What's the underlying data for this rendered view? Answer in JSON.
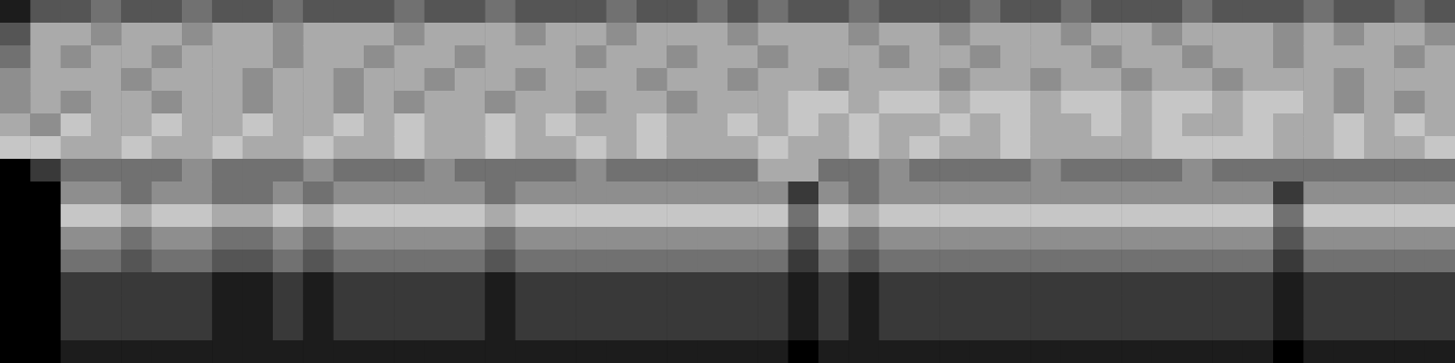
{
  "chart_data": {
    "type": "heatmap",
    "tick_labels": false,
    "zlim": [
      0,
      9
    ],
    "cells": [
      [
        1,
        3,
        3,
        4,
        3,
        3,
        4,
        3,
        3,
        4,
        3,
        3,
        3,
        4,
        3,
        3,
        4,
        3,
        3,
        3,
        4,
        3,
        3,
        4,
        3,
        4,
        3,
        3,
        4,
        3,
        3,
        3,
        4,
        3,
        3,
        4,
        3,
        3,
        3,
        4,
        3,
        3,
        3,
        4,
        3,
        3,
        4,
        3
      ],
      [
        3,
        6,
        6,
        5,
        6,
        6,
        5,
        6,
        6,
        5,
        6,
        6,
        6,
        5,
        6,
        6,
        6,
        5,
        6,
        6,
        5,
        6,
        6,
        6,
        5,
        6,
        6,
        6,
        5,
        6,
        6,
        5,
        6,
        6,
        6,
        5,
        6,
        6,
        5,
        6,
        6,
        6,
        5,
        6,
        5,
        6,
        6,
        5
      ],
      [
        4,
        6,
        5,
        6,
        6,
        5,
        6,
        6,
        6,
        5,
        6,
        6,
        5,
        6,
        6,
        5,
        6,
        6,
        6,
        5,
        6,
        6,
        5,
        6,
        6,
        5,
        6,
        6,
        6,
        5,
        6,
        6,
        5,
        6,
        6,
        6,
        5,
        6,
        6,
        5,
        6,
        6,
        5,
        6,
        6,
        6,
        5,
        6
      ],
      [
        5,
        6,
        6,
        6,
        5,
        6,
        6,
        6,
        5,
        6,
        6,
        5,
        6,
        6,
        5,
        6,
        6,
        5,
        6,
        6,
        6,
        5,
        6,
        6,
        5,
        6,
        6,
        5,
        6,
        6,
        6,
        5,
        6,
        6,
        5,
        6,
        6,
        5,
        6,
        6,
        5,
        6,
        6,
        6,
        5,
        6,
        6,
        6
      ],
      [
        5,
        6,
        5,
        6,
        6,
        5,
        6,
        6,
        5,
        6,
        6,
        5,
        6,
        5,
        6,
        6,
        5,
        6,
        6,
        5,
        6,
        6,
        5,
        6,
        6,
        6,
        7,
        7,
        6,
        7,
        7,
        6,
        7,
        7,
        6,
        7,
        7,
        6,
        7,
        7,
        6,
        7,
        7,
        6,
        5,
        6,
        5,
        6
      ],
      [
        6,
        5,
        7,
        6,
        6,
        7,
        6,
        6,
        7,
        6,
        6,
        7,
        6,
        7,
        6,
        6,
        7,
        6,
        7,
        6,
        6,
        7,
        6,
        6,
        7,
        6,
        7,
        6,
        7,
        6,
        6,
        7,
        6,
        7,
        6,
        6,
        7,
        6,
        7,
        6,
        6,
        7,
        6,
        6,
        7,
        6,
        7,
        6
      ],
      [
        7,
        7,
        6,
        6,
        7,
        6,
        6,
        7,
        6,
        6,
        7,
        6,
        6,
        7,
        6,
        6,
        7,
        6,
        6,
        7,
        6,
        7,
        6,
        6,
        6,
        7,
        6,
        6,
        7,
        6,
        7,
        6,
        6,
        7,
        6,
        6,
        6,
        6,
        7,
        7,
        7,
        7,
        6,
        6,
        7,
        6,
        6,
        7
      ],
      [
        0,
        2,
        4,
        4,
        4,
        4,
        5,
        4,
        4,
        4,
        5,
        4,
        4,
        4,
        5,
        4,
        4,
        4,
        4,
        5,
        4,
        4,
        4,
        4,
        4,
        6,
        6,
        4,
        4,
        5,
        4,
        4,
        4,
        4,
        5,
        4,
        4,
        4,
        4,
        5,
        4,
        4,
        4,
        4,
        4,
        4,
        4,
        4
      ],
      [
        0,
        0,
        5,
        5,
        4,
        5,
        5,
        4,
        4,
        5,
        4,
        5,
        5,
        5,
        5,
        5,
        4,
        5,
        5,
        5,
        5,
        5,
        5,
        5,
        5,
        5,
        2,
        5,
        4,
        5,
        5,
        5,
        5,
        5,
        5,
        5,
        5,
        5,
        5,
        5,
        5,
        5,
        2,
        5,
        5,
        5,
        5,
        5
      ],
      [
        0,
        0,
        7,
        7,
        6,
        7,
        7,
        6,
        6,
        7,
        6,
        7,
        7,
        7,
        7,
        7,
        6,
        7,
        7,
        7,
        7,
        7,
        7,
        7,
        7,
        7,
        4,
        7,
        6,
        7,
        7,
        7,
        7,
        7,
        7,
        7,
        7,
        7,
        7,
        7,
        7,
        7,
        4,
        7,
        7,
        7,
        7,
        7
      ],
      [
        0,
        0,
        5,
        5,
        4,
        5,
        5,
        4,
        4,
        5,
        4,
        5,
        5,
        5,
        5,
        5,
        4,
        5,
        5,
        5,
        5,
        5,
        5,
        5,
        5,
        5,
        3,
        5,
        4,
        5,
        5,
        5,
        5,
        5,
        5,
        5,
        5,
        5,
        5,
        5,
        5,
        5,
        3,
        5,
        5,
        5,
        5,
        5
      ],
      [
        0,
        0,
        4,
        4,
        3,
        4,
        4,
        3,
        3,
        4,
        3,
        4,
        4,
        4,
        4,
        4,
        3,
        4,
        4,
        4,
        4,
        4,
        4,
        4,
        4,
        4,
        2,
        4,
        3,
        4,
        4,
        4,
        4,
        4,
        4,
        4,
        4,
        4,
        4,
        4,
        4,
        4,
        2,
        4,
        4,
        4,
        4,
        4
      ],
      [
        0,
        0,
        2,
        2,
        2,
        2,
        2,
        1,
        1,
        2,
        1,
        2,
        2,
        2,
        2,
        2,
        1,
        2,
        2,
        2,
        2,
        2,
        2,
        2,
        2,
        2,
        1,
        2,
        1,
        2,
        2,
        2,
        2,
        2,
        2,
        2,
        2,
        2,
        2,
        2,
        2,
        2,
        1,
        2,
        2,
        2,
        2,
        2
      ],
      [
        0,
        0,
        2,
        2,
        2,
        2,
        2,
        1,
        1,
        2,
        1,
        2,
        2,
        2,
        2,
        2,
        1,
        2,
        2,
        2,
        2,
        2,
        2,
        2,
        2,
        2,
        1,
        2,
        1,
        2,
        2,
        2,
        2,
        2,
        2,
        2,
        2,
        2,
        2,
        2,
        2,
        2,
        1,
        2,
        2,
        2,
        2,
        2
      ],
      [
        0,
        0,
        2,
        2,
        2,
        2,
        2,
        1,
        1,
        2,
        1,
        2,
        2,
        2,
        2,
        2,
        1,
        2,
        2,
        2,
        2,
        2,
        2,
        2,
        2,
        2,
        1,
        2,
        1,
        2,
        2,
        2,
        2,
        2,
        2,
        2,
        2,
        2,
        2,
        2,
        2,
        2,
        1,
        2,
        2,
        2,
        2,
        2
      ],
      [
        0,
        0,
        1,
        1,
        1,
        1,
        1,
        1,
        1,
        1,
        1,
        1,
        1,
        1,
        1,
        1,
        1,
        1,
        1,
        1,
        1,
        1,
        1,
        1,
        1,
        1,
        0,
        1,
        1,
        1,
        1,
        1,
        1,
        1,
        1,
        1,
        1,
        1,
        1,
        1,
        1,
        1,
        0,
        1,
        1,
        1,
        1,
        1
      ]
    ]
  }
}
